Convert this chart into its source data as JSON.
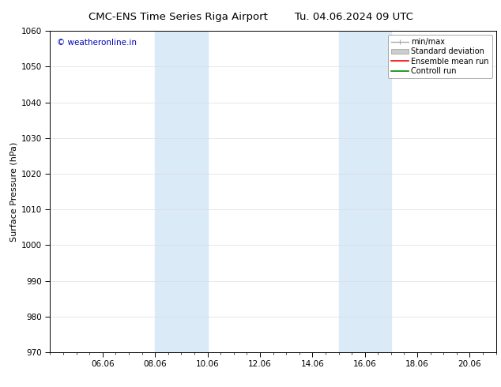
{
  "title_left": "CMC-ENS Time Series Riga Airport",
  "title_right": "Tu. 04.06.2024 09 UTC",
  "ylabel": "Surface Pressure (hPa)",
  "ylim": [
    970,
    1060
  ],
  "yticks": [
    970,
    980,
    990,
    1000,
    1010,
    1020,
    1030,
    1040,
    1050,
    1060
  ],
  "xlim": [
    4.0,
    21.0
  ],
  "xtick_positions": [
    6,
    8,
    10,
    12,
    14,
    16,
    18,
    20
  ],
  "xtick_labels": [
    "06.06",
    "08.06",
    "10.06",
    "12.06",
    "14.06",
    "16.06",
    "18.06",
    "20.06"
  ],
  "shaded_bands": [
    {
      "x_start": 8.0,
      "x_end": 10.0
    },
    {
      "x_start": 15.0,
      "x_end": 17.0
    }
  ],
  "shaded_color": "#daeaf7",
  "watermark_text": "© weatheronline.in",
  "watermark_color": "#0000bb",
  "legend_labels": [
    "min/max",
    "Standard deviation",
    "Ensemble mean run",
    "Controll run"
  ],
  "minmax_color": "#aaaaaa",
  "std_color": "#cccccc",
  "ensemble_color": "#ff0000",
  "control_color": "#008800",
  "bg_color": "#ffffff",
  "spine_color": "#000000",
  "grid_color": "#dddddd",
  "title_fontsize": 9.5,
  "ylabel_fontsize": 8,
  "tick_fontsize": 7.5,
  "watermark_fontsize": 7.5,
  "legend_fontsize": 7
}
